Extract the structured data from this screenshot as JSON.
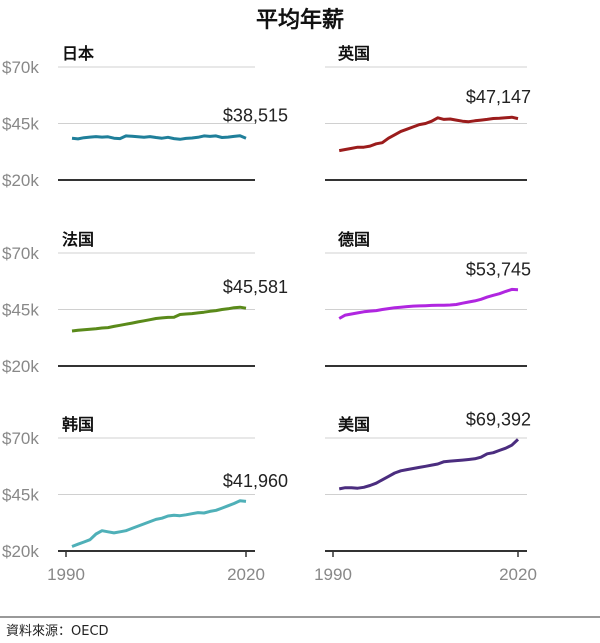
{
  "title": "平均年薪",
  "source": "資料來源：OECD",
  "chart_data": [
    {
      "type": "line",
      "title": "日本",
      "color": "#1f7f9a",
      "label": "$38,515",
      "x_start": 1991,
      "ylim": [
        20000,
        70000
      ],
      "yticks": [
        "$70k",
        "$45k",
        "$20k"
      ],
      "xticks": [
        "1990",
        "2020"
      ],
      "values": [
        38.5,
        38.2,
        38.7,
        39,
        39.2,
        39,
        39.1,
        38.5,
        38.3,
        39.5,
        39.4,
        39.1,
        38.9,
        39.2,
        38.8,
        38.5,
        38.9,
        38.3,
        38,
        38.4,
        38.6,
        38.9,
        39.5,
        39.3,
        39.5,
        38.8,
        39.0,
        39.3,
        39.6,
        38.515
      ]
    },
    {
      "type": "line",
      "title": "英国",
      "color": "#9b1c1c",
      "label": "$47,147",
      "x_start": 1991,
      "ylim": [
        20000,
        70000
      ],
      "yticks": [
        "$70k",
        "$45k",
        "$20k"
      ],
      "xticks": [
        "1990",
        "2020"
      ],
      "values": [
        33,
        33.5,
        34,
        34.5,
        34.5,
        35,
        36,
        36.5,
        38.5,
        40,
        41.5,
        42.5,
        43.5,
        44.5,
        45,
        46,
        47.5,
        46.8,
        47,
        46.5,
        46,
        45.8,
        46.2,
        46.5,
        46.8,
        47.2,
        47.3,
        47.5,
        47.8,
        47.147
      ]
    },
    {
      "type": "line",
      "title": "法国",
      "color": "#5a8a1a",
      "label": "$45,581",
      "x_start": 1991,
      "ylim": [
        20000,
        70000
      ],
      "yticks": [
        "$70k",
        "$45k",
        "$20k"
      ],
      "xticks": [
        "1990",
        "2020"
      ],
      "values": [
        35.5,
        35.8,
        36,
        36.3,
        36.5,
        36.8,
        37,
        37.5,
        38,
        38.5,
        39,
        39.5,
        40,
        40.5,
        41,
        41.3,
        41.5,
        41.6,
        42.8,
        43,
        43.2,
        43.5,
        43.8,
        44.2,
        44.5,
        45,
        45.3,
        45.8,
        46,
        45.581
      ]
    },
    {
      "type": "line",
      "title": "德国",
      "color": "#b026e0",
      "label": "$53,745",
      "x_start": 1991,
      "ylim": [
        20000,
        70000
      ],
      "yticks": [
        "$70k",
        "$45k",
        "$20k"
      ],
      "xticks": [
        "1990",
        "2020"
      ],
      "values": [
        41,
        42.5,
        43,
        43.5,
        44,
        44.3,
        44.5,
        45,
        45.4,
        45.8,
        46,
        46.3,
        46.5,
        46.6,
        46.7,
        46.8,
        46.9,
        46.9,
        47,
        47.2,
        47.8,
        48.3,
        48.8,
        49.5,
        50.5,
        51.3,
        52,
        53,
        53.9,
        53.745
      ]
    },
    {
      "type": "line",
      "title": "韩国",
      "color": "#4fb0b8",
      "label": "$41,960",
      "x_start": 1991,
      "ylim": [
        20000,
        70000
      ],
      "yticks": [
        "$70k",
        "$45k",
        "$20k"
      ],
      "xticks": [
        "1990",
        "2020"
      ],
      "values": [
        22,
        23,
        24,
        25,
        27.5,
        29,
        28.5,
        28,
        28.5,
        29,
        30,
        31,
        32,
        33,
        34,
        34.5,
        35.5,
        35.8,
        35.6,
        36,
        36.5,
        37,
        36.8,
        37.5,
        38,
        39,
        40,
        41,
        42.2,
        41.96
      ]
    },
    {
      "type": "line",
      "title": "美国",
      "color": "#4b2d7f",
      "label": "$69,392",
      "x_start": 1991,
      "ylim": [
        20000,
        70000
      ],
      "yticks": [
        "$70k",
        "$45k",
        "$20k"
      ],
      "xticks": [
        "1990",
        "2020"
      ],
      "values": [
        47.5,
        48,
        48,
        47.8,
        48.2,
        49,
        50,
        51.5,
        53,
        54.5,
        55.5,
        56,
        56.5,
        57,
        57.5,
        58,
        58.5,
        59.5,
        59.8,
        60,
        60.2,
        60.5,
        60.8,
        61.5,
        63,
        63.5,
        64.5,
        65.5,
        66.8,
        69.392
      ]
    }
  ]
}
